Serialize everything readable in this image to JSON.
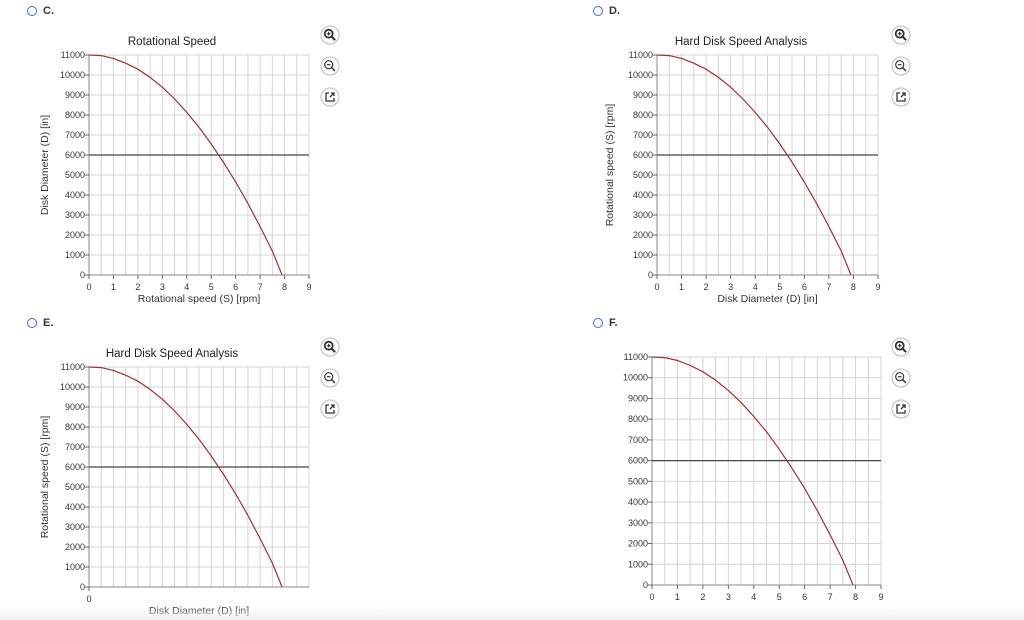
{
  "options": [
    {
      "label": "C."
    },
    {
      "label": "D."
    },
    {
      "label": "E."
    },
    {
      "label": "F."
    }
  ],
  "colors": {
    "curve": "#a03030",
    "threshold": "#444444",
    "grid": "#d4d4d4",
    "radio": "#3a6bd6"
  },
  "tool_icons": [
    "zoom-in-icon",
    "zoom-out-icon",
    "open-external-icon"
  ],
  "chart_data": [
    {
      "option": "C.",
      "type": "line",
      "title": "Rotational Speed",
      "xlabel": "Rotational speed (S) [rpm]",
      "ylabel": "Disk Diameter (D) [in]",
      "xlim": [
        0,
        9
      ],
      "ylim": [
        0,
        11000
      ],
      "xticks": [
        "0",
        "1",
        "2",
        "3",
        "4",
        "5",
        "6",
        "7",
        "8",
        "9"
      ],
      "yticks": [
        "0",
        "1000",
        "2000",
        "3000",
        "4000",
        "5000",
        "6000",
        "7000",
        "8000",
        "9000",
        "10000",
        "11000"
      ],
      "grid": true,
      "curve": {
        "x": [
          0,
          0.5,
          1,
          1.5,
          2,
          2.5,
          3,
          3.5,
          4,
          4.5,
          5,
          5.5,
          6,
          6.5,
          7,
          7.5,
          7.9
        ],
        "y": [
          11000,
          10970,
          10830,
          10590,
          10290,
          9880,
          9390,
          8800,
          8130,
          7390,
          6550,
          5640,
          4650,
          3580,
          2420,
          1200,
          0
        ]
      },
      "threshold": 6000
    },
    {
      "option": "D.",
      "type": "line",
      "title": "Hard Disk Speed Analysis",
      "xlabel": "Disk Diameter (D) [in]",
      "ylabel": "Rotational speed (S) [rpm]",
      "xlim": [
        0,
        9
      ],
      "ylim": [
        0,
        11000
      ],
      "xticks": [
        "0",
        "1",
        "2",
        "3",
        "4",
        "5",
        "6",
        "7",
        "8",
        "9"
      ],
      "yticks": [
        "0",
        "1000",
        "2000",
        "3000",
        "4000",
        "5000",
        "6000",
        "7000",
        "8000",
        "9000",
        "10000",
        "11000"
      ],
      "grid": true,
      "curve": {
        "x": [
          0,
          0.5,
          1,
          1.5,
          2,
          2.5,
          3,
          3.5,
          4,
          4.5,
          5,
          5.5,
          6,
          6.5,
          7,
          7.5,
          7.9
        ],
        "y": [
          11000,
          10970,
          10830,
          10590,
          10290,
          9880,
          9390,
          8800,
          8130,
          7390,
          6550,
          5640,
          4650,
          3580,
          2420,
          1200,
          0
        ]
      },
      "threshold": 6000
    },
    {
      "option": "E.",
      "type": "line",
      "title": "Hard Disk Speed Analysis",
      "xlabel": "Disk Diameter (D) [in]",
      "ylabel": "Rotational speed (S) [rpm]",
      "xlim": [
        0,
        9
      ],
      "ylim": [
        0,
        11000
      ],
      "xticks": [
        "0"
      ],
      "yticks": [
        "0",
        "1000",
        "2000",
        "3000",
        "4000",
        "5000",
        "6000",
        "7000",
        "8000",
        "9000",
        "10000",
        "11000"
      ],
      "grid": true,
      "curve": {
        "x": [
          0,
          0.5,
          1,
          1.5,
          2,
          2.5,
          3,
          3.5,
          4,
          4.5,
          5,
          5.5,
          6,
          6.5,
          7,
          7.5,
          7.9
        ],
        "y": [
          11000,
          10970,
          10830,
          10590,
          10290,
          9880,
          9390,
          8800,
          8130,
          7390,
          6550,
          5640,
          4650,
          3580,
          2420,
          1200,
          0
        ]
      },
      "threshold": 6000
    },
    {
      "option": "F.",
      "type": "line",
      "title": "",
      "xlabel": "",
      "ylabel": "",
      "xlim": [
        0,
        9
      ],
      "ylim": [
        0,
        11000
      ],
      "xticks": [
        "0",
        "1",
        "2",
        "3",
        "4",
        "5",
        "6",
        "7",
        "8",
        "9"
      ],
      "yticks": [
        "0",
        "1000",
        "2000",
        "3000",
        "4000",
        "5000",
        "6000",
        "7000",
        "8000",
        "9000",
        "10000",
        "11000"
      ],
      "grid": true,
      "curve": {
        "x": [
          0,
          0.5,
          1,
          1.5,
          2,
          2.5,
          3,
          3.5,
          4,
          4.5,
          5,
          5.5,
          6,
          6.5,
          7,
          7.5,
          7.9
        ],
        "y": [
          11000,
          10970,
          10830,
          10590,
          10290,
          9880,
          9390,
          8800,
          8130,
          7390,
          6550,
          5640,
          4650,
          3580,
          2420,
          1200,
          0
        ]
      },
      "threshold": 6000
    }
  ]
}
